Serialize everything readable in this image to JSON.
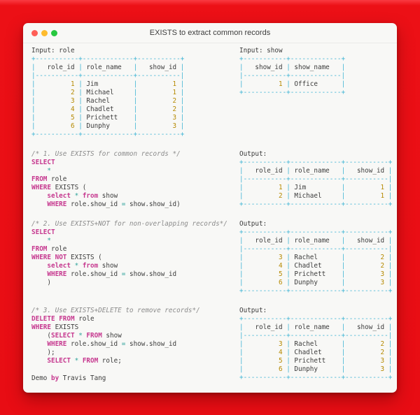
{
  "window": {
    "title": "EXISTS to extract common records",
    "traffic_lights": {
      "close": "#ff5f57",
      "minimize": "#febc2e",
      "zoom": "#28c840"
    }
  },
  "colors": {
    "background_red": "#e80d14",
    "window_bg": "#f8f8f6",
    "keyword": "#c6388f",
    "operator": "#2aa198",
    "number": "#b58900",
    "table_border": "#3db3d4",
    "comment": "#8b8b8b",
    "text": "#3b3b3b"
  },
  "labels": {
    "input_role": "Input: role",
    "input_show": "Input: show",
    "output": "Output:"
  },
  "tables": {
    "role": {
      "headers": [
        "role_id",
        "role_name",
        "show_id"
      ],
      "widths": [
        11,
        13,
        11
      ],
      "aligns": [
        "right",
        "left",
        "right"
      ],
      "rows": [
        [
          1,
          "Jim",
          1
        ],
        [
          2,
          "Michael",
          1
        ],
        [
          3,
          "Rachel",
          2
        ],
        [
          4,
          "Chadlet",
          2
        ],
        [
          5,
          "Prichett",
          3
        ],
        [
          6,
          "Dunphy",
          3
        ]
      ]
    },
    "show": {
      "headers": [
        "show_id",
        "show_name"
      ],
      "widths": [
        11,
        13
      ],
      "aligns": [
        "right",
        "left"
      ],
      "rows": [
        [
          1,
          "Office"
        ]
      ]
    },
    "output1": {
      "headers": [
        "role_id",
        "role_name",
        "show_id"
      ],
      "widths": [
        11,
        13,
        11
      ],
      "aligns": [
        "right",
        "left",
        "right"
      ],
      "rows": [
        [
          1,
          "Jim",
          1
        ],
        [
          2,
          "Michael",
          1
        ]
      ]
    },
    "output2": {
      "headers": [
        "role_id",
        "role_name",
        "show_id"
      ],
      "widths": [
        11,
        13,
        11
      ],
      "aligns": [
        "right",
        "left",
        "right"
      ],
      "rows": [
        [
          3,
          "Rachel",
          2
        ],
        [
          4,
          "Chadlet",
          2
        ],
        [
          5,
          "Prichett",
          3
        ],
        [
          6,
          "Dunphy",
          3
        ]
      ]
    },
    "output3": {
      "headers": [
        "role_id",
        "role_name",
        "show_id"
      ],
      "widths": [
        11,
        13,
        11
      ],
      "aligns": [
        "right",
        "left",
        "right"
      ],
      "rows": [
        [
          3,
          "Rachel",
          2
        ],
        [
          4,
          "Chadlet",
          2
        ],
        [
          5,
          "Prichett",
          3
        ],
        [
          6,
          "Dunphy",
          3
        ]
      ]
    }
  },
  "code_blocks": [
    {
      "lines": [
        [
          {
            "t": "/* 1. Use EXISTS for common records */",
            "c": "comment"
          }
        ],
        [
          {
            "t": "SELECT",
            "c": "kw"
          }
        ],
        [
          {
            "t": "    "
          },
          {
            "t": "*",
            "c": "op"
          }
        ],
        [
          {
            "t": "FROM",
            "c": "kw"
          },
          {
            "t": " role"
          }
        ],
        [
          {
            "t": "WHERE",
            "c": "kw"
          },
          {
            "t": " EXISTS ("
          }
        ],
        [
          {
            "t": "    "
          },
          {
            "t": "select",
            "c": "kw"
          },
          {
            "t": " "
          },
          {
            "t": "*",
            "c": "op"
          },
          {
            "t": " "
          },
          {
            "t": "from",
            "c": "kw"
          },
          {
            "t": " show"
          }
        ],
        [
          {
            "t": "    "
          },
          {
            "t": "WHERE",
            "c": "kw"
          },
          {
            "t": " role.show_id "
          },
          {
            "t": "=",
            "c": "op"
          },
          {
            "t": " show.show_id)"
          }
        ]
      ]
    },
    {
      "lines": [
        [
          {
            "t": "/* 2. Use EXISTS+NOT for non-overlapping records*/",
            "c": "comment"
          }
        ],
        [
          {
            "t": "SELECT",
            "c": "kw"
          }
        ],
        [
          {
            "t": "    "
          },
          {
            "t": "*",
            "c": "op"
          }
        ],
        [
          {
            "t": "FROM",
            "c": "kw"
          },
          {
            "t": " role"
          }
        ],
        [
          {
            "t": "WHERE",
            "c": "kw"
          },
          {
            "t": " "
          },
          {
            "t": "NOT",
            "c": "kw"
          },
          {
            "t": " EXISTS ("
          }
        ],
        [
          {
            "t": "    "
          },
          {
            "t": "select",
            "c": "kw"
          },
          {
            "t": " "
          },
          {
            "t": "*",
            "c": "op"
          },
          {
            "t": " "
          },
          {
            "t": "from",
            "c": "kw"
          },
          {
            "t": " show"
          }
        ],
        [
          {
            "t": "    "
          },
          {
            "t": "WHERE",
            "c": "kw"
          },
          {
            "t": " role.show_id "
          },
          {
            "t": "=",
            "c": "op"
          },
          {
            "t": " show.show_id"
          }
        ],
        [
          {
            "t": "    )"
          }
        ]
      ]
    },
    {
      "lines": [
        [
          {
            "t": "/* 3. Use EXISTS+DELETE to remove records*/",
            "c": "comment"
          }
        ],
        [
          {
            "t": "DELETE",
            "c": "kw"
          },
          {
            "t": " "
          },
          {
            "t": "FROM",
            "c": "kw"
          },
          {
            "t": " role"
          }
        ],
        [
          {
            "t": "WHERE",
            "c": "kw"
          },
          {
            "t": " EXISTS"
          }
        ],
        [
          {
            "t": "    ("
          },
          {
            "t": "SELECT",
            "c": "kw"
          },
          {
            "t": " "
          },
          {
            "t": "*",
            "c": "op"
          },
          {
            "t": " "
          },
          {
            "t": "FROM",
            "c": "kw"
          },
          {
            "t": " show"
          }
        ],
        [
          {
            "t": "    "
          },
          {
            "t": "WHERE",
            "c": "kw"
          },
          {
            "t": " role.show_id "
          },
          {
            "t": "=",
            "c": "op"
          },
          {
            "t": " show.show_id"
          }
        ],
        [
          {
            "t": "    );"
          }
        ],
        [
          {
            "t": "    "
          },
          {
            "t": "SELECT",
            "c": "kw"
          },
          {
            "t": " "
          },
          {
            "t": "*",
            "c": "op"
          },
          {
            "t": " "
          },
          {
            "t": "FROM",
            "c": "kw"
          },
          {
            "t": " role;"
          }
        ]
      ]
    }
  ],
  "footer": {
    "tokens": [
      {
        "t": "Demo "
      },
      {
        "t": "by",
        "c": "kw"
      },
      {
        "t": " Travis Tang"
      }
    ]
  }
}
